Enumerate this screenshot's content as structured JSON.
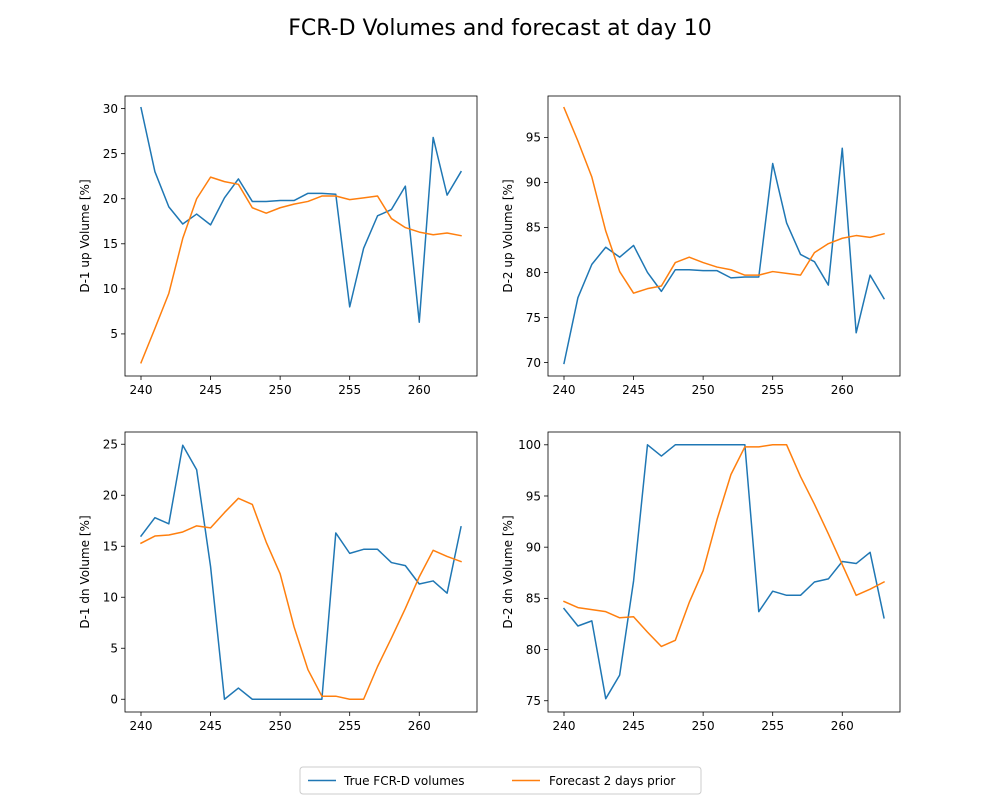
{
  "figure": {
    "title": "FCR-D Volumes and forecast at day 10"
  },
  "legend": {
    "placement": "bottom-center",
    "items": [
      {
        "label": "True FCR-D volumes",
        "color": "#1f77b4"
      },
      {
        "label": "Forecast 2 days prior",
        "color": "#ff7f0e"
      }
    ]
  },
  "chart_data": [
    {
      "type": "line",
      "panel": "top-left",
      "xlabel": "",
      "ylabel": "D-1 up Volume [%]",
      "xlim": [
        238.85,
        264.15
      ],
      "ylim": [
        0.33,
        31.4
      ],
      "xticks": [
        240,
        245,
        250,
        255,
        260
      ],
      "yticks": [
        5,
        10,
        15,
        20,
        25,
        30
      ],
      "x": [
        240,
        241,
        242,
        243,
        244,
        245,
        246,
        247,
        248,
        249,
        250,
        251,
        252,
        253,
        254,
        255,
        256,
        257,
        258,
        259,
        260,
        261,
        262,
        263
      ],
      "series": [
        {
          "name": "True FCR-D volumes",
          "color": "#1f77b4",
          "values": [
            30.1,
            23.0,
            19.1,
            17.2,
            18.3,
            17.1,
            20.1,
            22.2,
            19.7,
            19.7,
            19.8,
            19.8,
            20.6,
            20.6,
            20.5,
            8.0,
            14.5,
            18.1,
            18.8,
            21.4,
            6.3,
            26.8,
            20.4,
            23.0
          ]
        },
        {
          "name": "Forecast 2 days prior",
          "color": "#ff7f0e",
          "values": [
            1.8,
            5.6,
            9.5,
            15.6,
            20.0,
            22.4,
            21.9,
            21.6,
            19.0,
            18.4,
            19.0,
            19.4,
            19.7,
            20.3,
            20.3,
            19.9,
            20.1,
            20.3,
            17.8,
            16.8,
            16.3,
            16.0,
            16.2,
            15.9
          ]
        }
      ]
    },
    {
      "type": "line",
      "panel": "top-right",
      "xlabel": "",
      "ylabel": "D-2 up Volume [%]",
      "xlim": [
        238.85,
        264.15
      ],
      "ylim": [
        68.5,
        99.6
      ],
      "xticks": [
        240,
        245,
        250,
        255,
        260
      ],
      "yticks": [
        70,
        75,
        80,
        85,
        90,
        95
      ],
      "x": [
        240,
        241,
        242,
        243,
        244,
        245,
        246,
        247,
        248,
        249,
        250,
        251,
        252,
        253,
        254,
        255,
        256,
        257,
        258,
        259,
        260,
        261,
        262,
        263
      ],
      "series": [
        {
          "name": "True FCR-D volumes",
          "color": "#1f77b4",
          "values": [
            69.9,
            77.2,
            80.9,
            82.8,
            81.7,
            83.0,
            80.0,
            77.9,
            80.3,
            80.3,
            80.2,
            80.2,
            79.4,
            79.5,
            79.5,
            92.1,
            85.5,
            82.0,
            81.2,
            78.6,
            93.8,
            73.3,
            79.7,
            77.1
          ]
        },
        {
          "name": "Forecast 2 days prior",
          "color": "#ff7f0e",
          "values": [
            98.3,
            94.6,
            90.6,
            84.6,
            80.1,
            77.7,
            78.2,
            78.5,
            81.1,
            81.7,
            81.1,
            80.6,
            80.3,
            79.7,
            79.7,
            80.1,
            79.9,
            79.7,
            82.2,
            83.2,
            83.8,
            84.1,
            83.9,
            84.3
          ]
        }
      ]
    },
    {
      "type": "line",
      "panel": "bottom-left",
      "xlabel": "",
      "ylabel": "D-1 dn Volume [%]",
      "xlim": [
        238.85,
        264.15
      ],
      "ylim": [
        -1.25,
        26.2
      ],
      "xticks": [
        240,
        245,
        250,
        255,
        260
      ],
      "yticks": [
        0,
        5,
        10,
        15,
        20,
        25
      ],
      "x": [
        240,
        241,
        242,
        243,
        244,
        245,
        246,
        247,
        248,
        249,
        250,
        251,
        252,
        253,
        254,
        255,
        256,
        257,
        258,
        259,
        260,
        261,
        262,
        263
      ],
      "series": [
        {
          "name": "True FCR-D volumes",
          "color": "#1f77b4",
          "values": [
            16.0,
            17.8,
            17.2,
            24.9,
            22.5,
            13.0,
            0.0,
            1.1,
            0.0,
            0.0,
            0.0,
            0.0,
            0.0,
            0.0,
            16.3,
            14.3,
            14.7,
            14.7,
            13.4,
            13.1,
            11.3,
            11.6,
            10.4,
            16.9
          ]
        },
        {
          "name": "Forecast 2 days prior",
          "color": "#ff7f0e",
          "values": [
            15.3,
            16.0,
            16.1,
            16.4,
            17.0,
            16.8,
            18.3,
            19.7,
            19.1,
            15.4,
            12.3,
            7.1,
            2.9,
            0.3,
            0.3,
            0.0,
            0.0,
            3.2,
            6.0,
            8.9,
            12.0,
            14.6,
            14.0,
            13.5
          ]
        }
      ]
    },
    {
      "type": "line",
      "panel": "bottom-right",
      "xlabel": "",
      "ylabel": "D-2 dn Volume [%]",
      "xlim": [
        238.85,
        264.15
      ],
      "ylim": [
        73.9,
        101.25
      ],
      "xticks": [
        240,
        245,
        250,
        255,
        260
      ],
      "yticks": [
        75,
        80,
        85,
        90,
        95,
        100
      ],
      "x": [
        240,
        241,
        242,
        243,
        244,
        245,
        246,
        247,
        248,
        249,
        250,
        251,
        252,
        253,
        254,
        255,
        256,
        257,
        258,
        259,
        260,
        261,
        262,
        263
      ],
      "series": [
        {
          "name": "True FCR-D volumes",
          "color": "#1f77b4",
          "values": [
            84.0,
            82.3,
            82.8,
            75.2,
            77.5,
            86.7,
            100.0,
            98.9,
            100.0,
            100.0,
            100.0,
            100.0,
            100.0,
            100.0,
            83.7,
            85.7,
            85.3,
            85.3,
            86.6,
            86.9,
            88.6,
            88.4,
            89.5,
            83.1
          ]
        },
        {
          "name": "Forecast 2 days prior",
          "color": "#ff7f0e",
          "values": [
            84.7,
            84.1,
            83.9,
            83.7,
            83.1,
            83.2,
            81.7,
            80.3,
            80.9,
            84.6,
            87.7,
            92.7,
            97.1,
            99.8,
            99.8,
            100.0,
            100.0,
            96.9,
            94.2,
            91.3,
            88.3,
            85.3,
            85.9,
            86.6
          ]
        }
      ]
    }
  ]
}
